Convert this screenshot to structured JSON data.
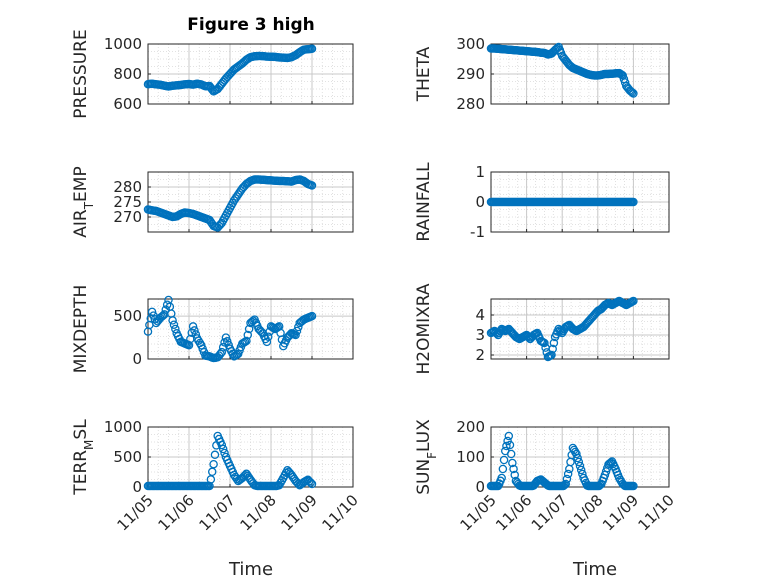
{
  "figure": {
    "title": "Figure 3 high",
    "xlabel": "Time",
    "x_ticks": [
      "11/05",
      "11/06",
      "11/07",
      "11/08",
      "11/09",
      "11/10"
    ],
    "marker_color": "#0072BD",
    "grid_color": "#c8c8c8"
  },
  "chart_data": [
    {
      "type": "scatter",
      "ylabel": "PRESSURE",
      "ylim": [
        600,
        1000
      ],
      "yticks": [
        "600",
        "800",
        "1000"
      ],
      "x_day_range": [
        5,
        10
      ],
      "series": [
        {
          "x": [
            5.0,
            5.1,
            5.2,
            5.3,
            5.4,
            5.5,
            5.6,
            5.7,
            5.8,
            5.9,
            6.0,
            6.1,
            6.2,
            6.3,
            6.4,
            6.5,
            6.6,
            6.7,
            6.8,
            6.9,
            7.0,
            7.1,
            7.2,
            7.3,
            7.4,
            7.5,
            7.6,
            7.7,
            7.8,
            7.9,
            8.0,
            8.1,
            8.2,
            8.3,
            8.4,
            8.5,
            8.6,
            8.7,
            8.8,
            8.9,
            9.0
          ],
          "y": [
            732,
            735,
            731,
            728,
            722,
            717,
            722,
            724,
            727,
            731,
            733,
            729,
            735,
            730,
            718,
            720,
            684,
            700,
            735,
            770,
            800,
            830,
            850,
            870,
            895,
            912,
            918,
            920,
            919,
            916,
            915,
            914,
            910,
            909,
            907,
            912,
            925,
            945,
            962,
            965,
            968
          ]
        }
      ]
    },
    {
      "type": "scatter",
      "ylabel": "THETA",
      "ylim": [
        280,
        300
      ],
      "yticks": [
        "280",
        "290",
        "300"
      ],
      "x_day_range": [
        5,
        10
      ],
      "series": [
        {
          "x": [
            5.0,
            5.1,
            5.2,
            5.3,
            5.4,
            5.5,
            5.6,
            5.7,
            5.8,
            5.9,
            6.0,
            6.1,
            6.2,
            6.3,
            6.4,
            6.5,
            6.6,
            6.7,
            6.8,
            6.9,
            7.0,
            7.1,
            7.2,
            7.3,
            7.4,
            7.5,
            7.6,
            7.7,
            7.8,
            7.9,
            8.0,
            8.1,
            8.2,
            8.3,
            8.4,
            8.5,
            8.6,
            8.7,
            8.8,
            8.9,
            9.0
          ],
          "y": [
            298.5,
            298.5,
            298.4,
            298.3,
            298.2,
            298.1,
            298,
            297.9,
            297.8,
            297.7,
            297.6,
            297.5,
            297.4,
            297.3,
            297.1,
            297.0,
            296.5,
            296.8,
            298.0,
            299.0,
            296.0,
            294.5,
            293.0,
            292.0,
            291.5,
            291.0,
            290.5,
            290.0,
            289.7,
            289.5,
            289.5,
            289.7,
            290.0,
            290.0,
            290.1,
            290.2,
            290.3,
            289.5,
            286.0,
            284.5,
            283.5
          ]
        }
      ]
    },
    {
      "type": "scatter",
      "ylabel": "AIR_TEMP",
      "ylim": [
        265,
        285
      ],
      "yticks": [
        "270",
        "275",
        "280"
      ],
      "x_day_range": [
        5,
        10
      ],
      "series": [
        {
          "x": [
            5.0,
            5.1,
            5.2,
            5.3,
            5.4,
            5.5,
            5.6,
            5.7,
            5.8,
            5.9,
            6.0,
            6.1,
            6.2,
            6.3,
            6.4,
            6.5,
            6.6,
            6.7,
            6.8,
            6.9,
            7.0,
            7.1,
            7.2,
            7.3,
            7.4,
            7.5,
            7.6,
            7.7,
            7.8,
            7.9,
            8.0,
            8.1,
            8.2,
            8.3,
            8.4,
            8.5,
            8.6,
            8.7,
            8.8,
            8.9,
            9.0
          ],
          "y": [
            272.5,
            272.2,
            272.0,
            271.5,
            271.0,
            270.5,
            270.0,
            270.2,
            271.0,
            271.5,
            271.3,
            271.0,
            270.5,
            270.0,
            269.5,
            269.0,
            267.0,
            266.5,
            268.0,
            270.5,
            273.0,
            275.5,
            277.5,
            279.5,
            281.0,
            282.0,
            282.5,
            282.5,
            282.4,
            282.3,
            282.2,
            282.1,
            282.0,
            282.0,
            281.9,
            281.8,
            282.3,
            282.5,
            282.0,
            281.0,
            280.5
          ]
        }
      ]
    },
    {
      "type": "scatter",
      "ylabel": "RAINFALL",
      "ylim": [
        -1,
        1
      ],
      "yticks": [
        "-1",
        "0",
        "1"
      ],
      "x_day_range": [
        5,
        10
      ],
      "series": [
        {
          "x": [
            5.0,
            5.1,
            5.2,
            5.3,
            5.4,
            5.5,
            5.6,
            5.7,
            5.8,
            5.9,
            6.0,
            6.1,
            6.2,
            6.3,
            6.4,
            6.5,
            6.6,
            6.7,
            6.8,
            6.9,
            7.0,
            7.1,
            7.2,
            7.3,
            7.4,
            7.5,
            7.6,
            7.7,
            7.8,
            7.9,
            8.0,
            8.1,
            8.2,
            8.3,
            8.4,
            8.5,
            8.6,
            8.7,
            8.8,
            8.9,
            9.0
          ],
          "y": [
            0,
            0,
            0,
            0,
            0,
            0,
            0,
            0,
            0,
            0,
            0,
            0,
            0,
            0,
            0,
            0,
            0,
            0,
            0,
            0,
            0,
            0,
            0,
            0,
            0,
            0,
            0,
            0,
            0,
            0,
            0,
            0,
            0,
            0,
            0,
            0,
            0,
            0,
            0,
            0,
            0
          ]
        }
      ]
    },
    {
      "type": "scatter",
      "ylabel": "MIXDEPTH",
      "ylim": [
        0,
        700
      ],
      "yticks": [
        "0",
        "500"
      ],
      "x_day_range": [
        5,
        10
      ],
      "series": [
        {
          "x": [
            5.0,
            5.1,
            5.2,
            5.3,
            5.4,
            5.5,
            5.6,
            5.7,
            5.8,
            5.9,
            6.0,
            6.1,
            6.2,
            6.3,
            6.4,
            6.5,
            6.6,
            6.7,
            6.8,
            6.9,
            7.0,
            7.1,
            7.2,
            7.3,
            7.4,
            7.5,
            7.6,
            7.7,
            7.8,
            7.9,
            8.0,
            8.1,
            8.2,
            8.3,
            8.4,
            8.5,
            8.6,
            8.7,
            8.8,
            8.9,
            9.0
          ],
          "y": [
            320,
            550,
            420,
            480,
            520,
            690,
            450,
            300,
            200,
            180,
            160,
            380,
            240,
            160,
            40,
            30,
            10,
            20,
            80,
            250,
            120,
            30,
            60,
            180,
            210,
            420,
            460,
            350,
            300,
            200,
            380,
            350,
            380,
            150,
            250,
            300,
            280,
            420,
            460,
            480,
            500
          ]
        }
      ]
    },
    {
      "type": "scatter",
      "ylabel": "H2OMIXRA",
      "ylim": [
        1.8,
        4.8
      ],
      "yticks": [
        "2",
        "3",
        "4"
      ],
      "x_day_range": [
        5,
        10
      ],
      "series": [
        {
          "x": [
            5.0,
            5.1,
            5.2,
            5.3,
            5.4,
            5.5,
            5.6,
            5.7,
            5.8,
            5.9,
            6.0,
            6.1,
            6.2,
            6.3,
            6.4,
            6.5,
            6.6,
            6.7,
            6.8,
            6.9,
            7.0,
            7.1,
            7.2,
            7.3,
            7.4,
            7.5,
            7.6,
            7.7,
            7.8,
            7.9,
            8.0,
            8.1,
            8.2,
            8.3,
            8.4,
            8.5,
            8.6,
            8.7,
            8.8,
            8.9,
            9.0
          ],
          "y": [
            3.1,
            3.2,
            3.0,
            3.3,
            3.2,
            3.3,
            3.1,
            2.9,
            2.8,
            2.9,
            3.0,
            2.8,
            3.0,
            3.1,
            2.7,
            2.6,
            1.9,
            2.0,
            2.9,
            3.3,
            3.1,
            3.4,
            3.5,
            3.3,
            3.2,
            3.3,
            3.4,
            3.6,
            3.8,
            4.0,
            4.2,
            4.3,
            4.5,
            4.6,
            4.5,
            4.6,
            4.7,
            4.6,
            4.5,
            4.6,
            4.7
          ]
        }
      ]
    },
    {
      "type": "scatter",
      "ylabel": "TERR_MSL",
      "ylim": [
        0,
        1000
      ],
      "yticks": [
        "0",
        "500",
        "1000"
      ],
      "x_day_range": [
        5,
        10
      ],
      "series": [
        {
          "x": [
            5.0,
            5.1,
            5.2,
            5.3,
            5.4,
            5.5,
            5.6,
            5.7,
            5.8,
            5.9,
            6.0,
            6.1,
            6.2,
            6.3,
            6.4,
            6.5,
            6.6,
            6.7,
            6.8,
            6.9,
            7.0,
            7.1,
            7.2,
            7.3,
            7.4,
            7.5,
            7.6,
            7.7,
            7.8,
            7.9,
            8.0,
            8.1,
            8.2,
            8.3,
            8.4,
            8.5,
            8.6,
            8.7,
            8.8,
            8.9,
            9.0
          ],
          "y": [
            0,
            0,
            0,
            0,
            0,
            0,
            0,
            0,
            0,
            0,
            0,
            0,
            0,
            0,
            0,
            0,
            380,
            850,
            700,
            500,
            350,
            200,
            100,
            150,
            220,
            120,
            30,
            10,
            5,
            0,
            0,
            10,
            30,
            150,
            280,
            200,
            100,
            30,
            80,
            120,
            50
          ]
        }
      ]
    },
    {
      "type": "scatter",
      "ylabel": "SUN_FLUX",
      "ylim": [
        0,
        200
      ],
      "yticks": [
        "0",
        "100",
        "200"
      ],
      "x_day_range": [
        5,
        10
      ],
      "series": [
        {
          "x": [
            5.0,
            5.1,
            5.2,
            5.3,
            5.4,
            5.5,
            5.6,
            5.7,
            5.8,
            5.9,
            6.0,
            6.1,
            6.2,
            6.3,
            6.4,
            6.5,
            6.6,
            6.7,
            6.8,
            6.9,
            7.0,
            7.1,
            7.2,
            7.3,
            7.4,
            7.5,
            7.6,
            7.7,
            7.8,
            7.9,
            8.0,
            8.1,
            8.2,
            8.3,
            8.4,
            8.5,
            8.6,
            8.7,
            8.8,
            8.9,
            9.0
          ],
          "y": [
            0,
            0,
            2,
            30,
            120,
            170,
            80,
            20,
            5,
            0,
            0,
            0,
            5,
            20,
            25,
            15,
            5,
            0,
            0,
            0,
            0,
            10,
            60,
            130,
            110,
            70,
            30,
            5,
            0,
            0,
            0,
            10,
            40,
            75,
            85,
            60,
            30,
            10,
            0,
            0,
            0
          ]
        }
      ]
    }
  ]
}
